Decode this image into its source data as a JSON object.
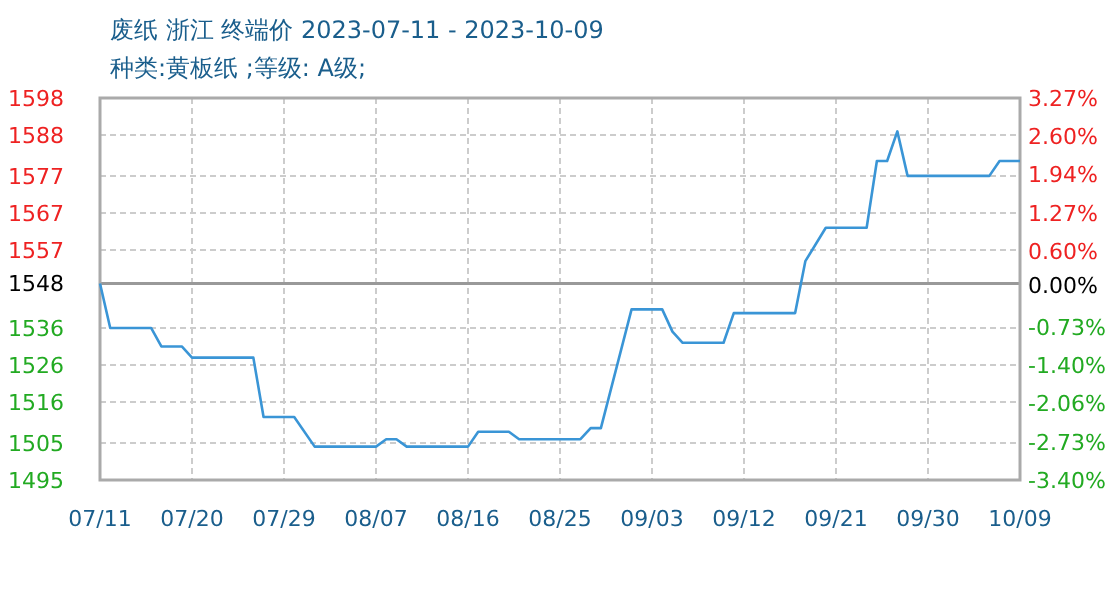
{
  "chart_data": {
    "type": "line",
    "title": "废纸 浙江 终端价 2023-07-11 - 2023-10-09",
    "subtitle": "种类:黄板纸 ;等级: A级;",
    "x": [
      "2023-07-11",
      "2023-07-12",
      "2023-07-16",
      "2023-07-17",
      "2023-07-19",
      "2023-07-20",
      "2023-07-26",
      "2023-07-27",
      "2023-07-30",
      "2023-08-01",
      "2023-08-07",
      "2023-08-08",
      "2023-08-09",
      "2023-08-10",
      "2023-08-16",
      "2023-08-17",
      "2023-08-20",
      "2023-08-21",
      "2023-08-27",
      "2023-08-28",
      "2023-08-29",
      "2023-09-01",
      "2023-09-04",
      "2023-09-05",
      "2023-09-06",
      "2023-09-10",
      "2023-09-11",
      "2023-09-17",
      "2023-09-18",
      "2023-09-20",
      "2023-09-24",
      "2023-09-25",
      "2023-09-26",
      "2023-09-27",
      "2023-09-28",
      "2023-10-06",
      "2023-10-07",
      "2023-10-09"
    ],
    "series": [
      {
        "color": "#3a95d6",
        "values": [
          1548,
          1536,
          1536,
          1531,
          1531,
          1528,
          1528,
          1512,
          1512,
          1504,
          1504,
          1506,
          1506,
          1504,
          1504,
          1508,
          1508,
          1506,
          1506,
          1509,
          1509,
          1541,
          1541,
          1535,
          1532,
          1532,
          1540,
          1540,
          1554,
          1563,
          1563,
          1581,
          1581,
          1589,
          1577,
          1577,
          1581,
          1581
        ]
      }
    ],
    "xlim": [
      "2023-07-11",
      "2023-10-09"
    ],
    "xticks": [
      {
        "value": "2023-07-11",
        "label": "07/11"
      },
      {
        "value": "2023-07-20",
        "label": "07/20"
      },
      {
        "value": "2023-07-29",
        "label": "07/29"
      },
      {
        "value": "2023-08-07",
        "label": "08/07"
      },
      {
        "value": "2023-08-16",
        "label": "08/16"
      },
      {
        "value": "2023-08-25",
        "label": "08/25"
      },
      {
        "value": "2023-09-03",
        "label": "09/03"
      },
      {
        "value": "2023-09-12",
        "label": "09/12"
      },
      {
        "value": "2023-09-21",
        "label": "09/21"
      },
      {
        "value": "2023-09-30",
        "label": "09/30"
      },
      {
        "value": "2023-10-09",
        "label": "10/09"
      }
    ],
    "ylim": [
      1495,
      1598
    ],
    "yticks": [
      1495,
      1505,
      1516,
      1526,
      1536,
      1548,
      1557,
      1567,
      1577,
      1588,
      1598
    ],
    "y2lim": [
      -3.4,
      3.27
    ],
    "y2ticks": [
      {
        "value": -3.4,
        "label": "-3.40%"
      },
      {
        "value": -2.73,
        "label": "-2.73%"
      },
      {
        "value": -2.06,
        "label": "-2.06%"
      },
      {
        "value": -1.4,
        "label": "-1.40%"
      },
      {
        "value": -0.73,
        "label": "-0.73%"
      },
      {
        "value": 0,
        "label": "0.00%"
      },
      {
        "value": 0.6,
        "label": "0.60%"
      },
      {
        "value": 1.27,
        "label": "1.27%"
      },
      {
        "value": 1.94,
        "label": "1.94%"
      },
      {
        "value": 2.6,
        "label": "2.60%"
      },
      {
        "value": 3.27,
        "label": "3.27%"
      }
    ],
    "ref_lines": [
      {
        "axis": "y",
        "value": 1548,
        "color": "#999999"
      }
    ],
    "grid": true,
    "line_style": "solid"
  }
}
